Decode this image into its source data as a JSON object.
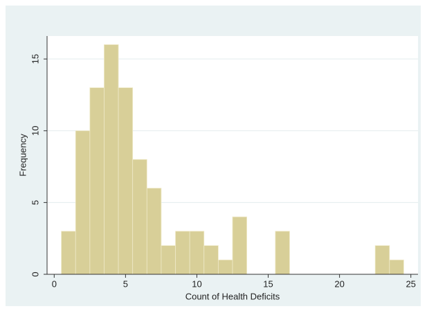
{
  "chart_data": {
    "type": "histogram",
    "xlabel": "Count of Health Deficits",
    "ylabel": "Frequency",
    "bins": [
      0.5,
      1.5,
      2.5,
      3.5,
      4.5,
      5.5,
      6.5,
      7.5,
      8.5,
      9.5,
      10.5,
      11.5,
      12.5,
      13.5,
      14.5,
      15.5,
      16.5,
      17.5,
      18.5,
      19.5,
      20.5,
      21.5,
      22.5,
      23.5,
      24.5
    ],
    "values": [
      3,
      10,
      13,
      16,
      13,
      8,
      6,
      2,
      3,
      3,
      2,
      1,
      4,
      0,
      0,
      3,
      0,
      0,
      0,
      0,
      0,
      0,
      2,
      1
    ],
    "color": "#d8cf98",
    "xlim": [
      -0.5,
      25.5
    ],
    "ylim": [
      0,
      16.6
    ],
    "xticks": [
      0,
      5,
      10,
      15,
      20,
      25
    ],
    "yticks": [
      0,
      5,
      10,
      15
    ],
    "grid": true
  }
}
